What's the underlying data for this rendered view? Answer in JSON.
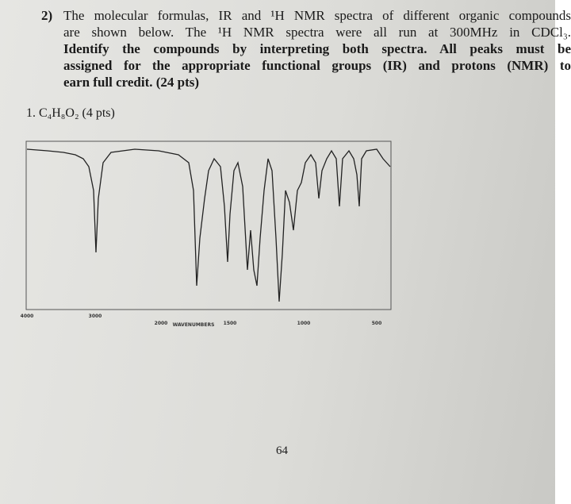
{
  "question": {
    "number": "2)",
    "lines": [
      "The molecular formulas, IR and ¹H NMR spectra of different organic compounds",
      "are shown below. The ¹H NMR spectra were all run at 300MHz in CDCl₃.",
      "Identify the compounds by interpreting both spectra. All peaks must be",
      "assigned for the appropriate functional groups (IR) and protons (NMR) to",
      "earn full credit. (24 pts)"
    ]
  },
  "problem": {
    "label": "1. C₄H₈O₂ (4 pts)"
  },
  "figure": {
    "x_tick_labels": [
      "4000",
      "3000",
      "2000",
      "1500",
      "1000",
      "500"
    ],
    "x_axis_label": "WAVENUMBERS"
  },
  "page_number": "64"
}
